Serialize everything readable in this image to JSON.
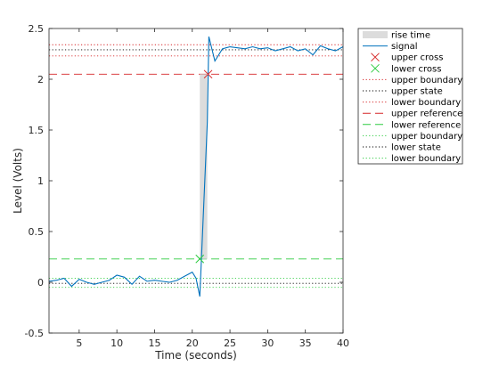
{
  "chart_data": {
    "type": "line",
    "xlabel": "Time (seconds)",
    "ylabel": "Level (Volts)",
    "xlim": [
      1,
      40
    ],
    "ylim": [
      -0.5,
      2.5
    ],
    "x_ticks": [
      5,
      10,
      15,
      20,
      25,
      30,
      35,
      40
    ],
    "y_ticks": [
      -0.5,
      0,
      0.5,
      1,
      1.5,
      2,
      2.5
    ],
    "grid": false,
    "legend_position": "outside-right",
    "rise_time": {
      "name": "rise time",
      "x_start": 21,
      "x_end": 22,
      "color": "#dcdcdc"
    },
    "signal": {
      "name": "signal",
      "color": "#0072bd",
      "x": [
        1,
        2,
        3,
        4,
        5,
        6,
        7,
        8,
        9,
        10,
        11,
        12,
        13,
        14,
        15,
        16,
        17,
        18,
        19,
        20,
        20.5,
        21,
        22,
        22.2,
        23,
        24,
        25,
        26,
        27,
        28,
        29,
        30,
        31,
        32,
        33,
        34,
        35,
        36,
        37,
        38,
        39,
        40
      ],
      "y": [
        0.01,
        0.02,
        0.04,
        -0.04,
        0.03,
        0.0,
        -0.02,
        0.0,
        0.02,
        0.07,
        0.05,
        -0.02,
        0.06,
        0.01,
        0.02,
        0.01,
        0.0,
        0.02,
        0.06,
        0.1,
        0.04,
        -0.14,
        1.58,
        2.42,
        2.18,
        2.3,
        2.32,
        2.31,
        2.3,
        2.32,
        2.3,
        2.31,
        2.28,
        2.3,
        2.32,
        2.28,
        2.3,
        2.24,
        2.33,
        2.3,
        2.28,
        2.32
      ]
    },
    "upper_cross": {
      "name": "upper cross",
      "x": 22.1,
      "y": 2.05,
      "color": "#d62728",
      "marker": "x"
    },
    "lower_cross": {
      "name": "lower cross",
      "x": 21.0,
      "y": 0.23,
      "color": "#2ecc40",
      "marker": "x"
    },
    "horizontal_lines": [
      {
        "name": "upper boundary",
        "y": 2.34,
        "color": "#d62728",
        "style": "dotted"
      },
      {
        "name": "upper state",
        "y": 2.29,
        "color": "#000000",
        "style": "dotted"
      },
      {
        "name": "lower boundary",
        "y": 2.23,
        "color": "#d62728",
        "style": "dotted"
      },
      {
        "name": "upper reference",
        "y": 2.05,
        "color": "#d62728",
        "style": "dashed"
      },
      {
        "name": "lower reference",
        "y": 0.23,
        "color": "#2ecc40",
        "style": "dashed"
      },
      {
        "name": "upper boundary",
        "y": 0.04,
        "color": "#2ecc40",
        "style": "dotted"
      },
      {
        "name": "lower state",
        "y": -0.01,
        "color": "#000000",
        "style": "dotted"
      },
      {
        "name": "lower boundary",
        "y": -0.05,
        "color": "#2ecc40",
        "style": "dotted"
      }
    ],
    "legend": [
      {
        "label": "rise time",
        "kind": "patch",
        "color": "#dcdcdc"
      },
      {
        "label": "signal",
        "kind": "line",
        "color": "#0072bd",
        "style": "solid"
      },
      {
        "label": "upper cross",
        "kind": "marker",
        "color": "#d62728"
      },
      {
        "label": "lower cross",
        "kind": "marker",
        "color": "#2ecc40"
      },
      {
        "label": "upper boundary",
        "kind": "line",
        "color": "#d62728",
        "style": "dotted"
      },
      {
        "label": "upper state",
        "kind": "line",
        "color": "#000000",
        "style": "dotted"
      },
      {
        "label": "lower boundary",
        "kind": "line",
        "color": "#d62728",
        "style": "dotted"
      },
      {
        "label": "upper reference",
        "kind": "line",
        "color": "#d62728",
        "style": "dashed"
      },
      {
        "label": "lower reference",
        "kind": "line",
        "color": "#2ecc40",
        "style": "dashed"
      },
      {
        "label": "upper boundary",
        "kind": "line",
        "color": "#2ecc40",
        "style": "dotted"
      },
      {
        "label": "lower state",
        "kind": "line",
        "color": "#000000",
        "style": "dotted"
      },
      {
        "label": "lower boundary",
        "kind": "line",
        "color": "#2ecc40",
        "style": "dotted"
      }
    ]
  }
}
